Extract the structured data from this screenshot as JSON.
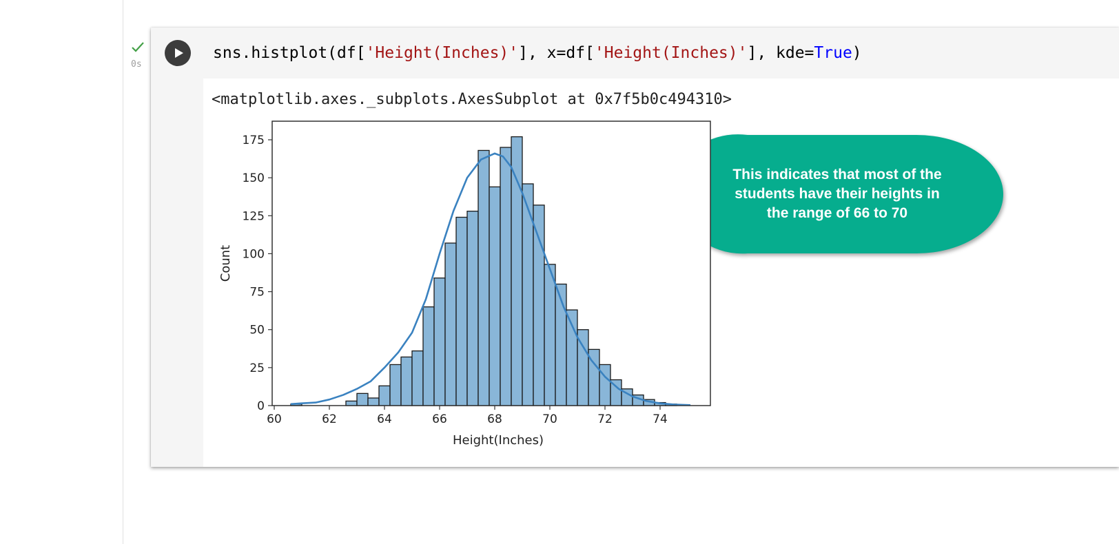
{
  "status": {
    "time": "0s",
    "check_color": "#43a047",
    "icon": "check-icon"
  },
  "cell": {
    "run_icon": "play-icon",
    "code_tokens": [
      {
        "text": "sns.histplot(df[",
        "type": "plain"
      },
      {
        "text": "'Height(Inches)'",
        "type": "str"
      },
      {
        "text": "], x=df[",
        "type": "plain"
      },
      {
        "text": "'Height(Inches)'",
        "type": "str"
      },
      {
        "text": "], kde=",
        "type": "plain"
      },
      {
        "text": "True",
        "type": "kw"
      },
      {
        "text": ")",
        "type": "plain"
      }
    ],
    "output_repr": "<matplotlib.axes._subplots.AxesSubplot at 0x7f5b0c494310>"
  },
  "callout": {
    "text_lines": [
      "This indicates that most of the",
      "students have their heights in",
      "the range of 66 to 70"
    ],
    "color": "#06ad8e"
  },
  "chart_data": {
    "type": "bar",
    "xlabel": "Height(Inches)",
    "ylabel": "Count",
    "xlim": [
      60,
      75
    ],
    "ylim": [
      0,
      187
    ],
    "xticks": [
      60,
      62,
      64,
      66,
      68,
      70,
      72,
      74
    ],
    "yticks": [
      0,
      25,
      50,
      75,
      100,
      125,
      150,
      175
    ],
    "bar_color": "#89b6d8",
    "bar_edge_color": "#1a1a1a",
    "kde_color": "#3a82c0",
    "bin_edges": [
      60.6,
      61.0,
      61.4,
      61.8,
      62.2,
      62.6,
      63.0,
      63.4,
      63.8,
      64.2,
      64.6,
      65.0,
      65.4,
      65.8,
      66.2,
      66.6,
      67.0,
      67.4,
      67.8,
      68.2,
      68.6,
      69.0,
      69.4,
      69.8,
      70.2,
      70.6,
      71.0,
      71.4,
      71.8,
      72.2,
      72.6,
      73.0,
      73.4,
      73.8,
      74.2,
      74.6,
      75.0
    ],
    "counts": [
      1,
      0,
      0,
      0,
      0,
      3,
      8,
      5,
      13,
      27,
      32,
      36,
      65,
      84,
      107,
      124,
      128,
      168,
      144,
      170,
      177,
      146,
      132,
      93,
      80,
      63,
      50,
      37,
      27,
      17,
      11,
      7,
      4,
      2,
      1,
      0
    ],
    "kde": {
      "x": [
        60.6,
        61.0,
        61.5,
        62.0,
        62.5,
        63.0,
        63.5,
        64.0,
        64.5,
        65.0,
        65.5,
        66.0,
        66.5,
        67.0,
        67.5,
        68.0,
        68.3,
        68.6,
        69.0,
        69.5,
        70.0,
        70.5,
        71.0,
        71.5,
        72.0,
        72.5,
        73.0,
        73.5,
        74.0,
        74.5,
        75.1
      ],
      "y": [
        1,
        1.5,
        2,
        4,
        7,
        11,
        16,
        25,
        35,
        48,
        70,
        100,
        128,
        150,
        162,
        166,
        164,
        157,
        140,
        115,
        90,
        65,
        45,
        30,
        19,
        11,
        6,
        3,
        1.5,
        0.7,
        0.3
      ]
    }
  }
}
